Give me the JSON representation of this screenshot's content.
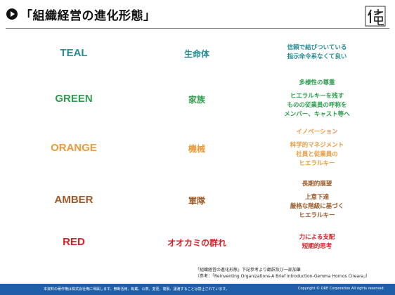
{
  "header": {
    "title": "「組織経営の進化形態」",
    "logo_text": "イ奄"
  },
  "rows": [
    {
      "level": "TEAL",
      "color": "#2a8c93",
      "metaphor": "生命体",
      "desc": [
        [
          "信頼で結びついている",
          "指示命令系なくて良い"
        ]
      ]
    },
    {
      "level": "GREEN",
      "color": "#2e9e4f",
      "metaphor": "家族",
      "desc": [
        [
          "多様性の尊重"
        ],
        [
          "ヒエラルキーを残す",
          "ものの従業員の呼称を",
          "メンバー、キャスト等へ"
        ]
      ]
    },
    {
      "level": "ORANGE",
      "color": "#ec9a3c",
      "metaphor": "機械",
      "desc": [
        [
          "イノベーション"
        ],
        [
          "科学的マネジメント",
          "社員と従業員の",
          "ヒエラルキー"
        ]
      ]
    },
    {
      "level": "AMBER",
      "color": "#9c5a2a",
      "metaphor": "軍隊",
      "desc": [
        [
          "長期的展望"
        ],
        [
          "上意下達",
          "厳格な階級に基づく",
          "ヒエラルキー"
        ]
      ]
    },
    {
      "level": "RED",
      "color": "#d91f26",
      "metaphor": "オオカミの群れ",
      "desc": [
        [
          "力による支配",
          "短期的思考"
        ]
      ]
    }
  ],
  "footnote": {
    "line1": "「組織経営の進化形態」下記参考より翻訳及び一部加筆",
    "line2": "（参考：「Reinventing Organizations-A Brief Introduction-Gemma Hornos Cireara」）"
  },
  "footer": {
    "left": "本資料の著作権は株式会社俺に帰属します。無断活用、転載、公表、変更、複製、譲渡することは禁止されています。",
    "right": "Copyright © ORE Corporation All rights reserved."
  }
}
